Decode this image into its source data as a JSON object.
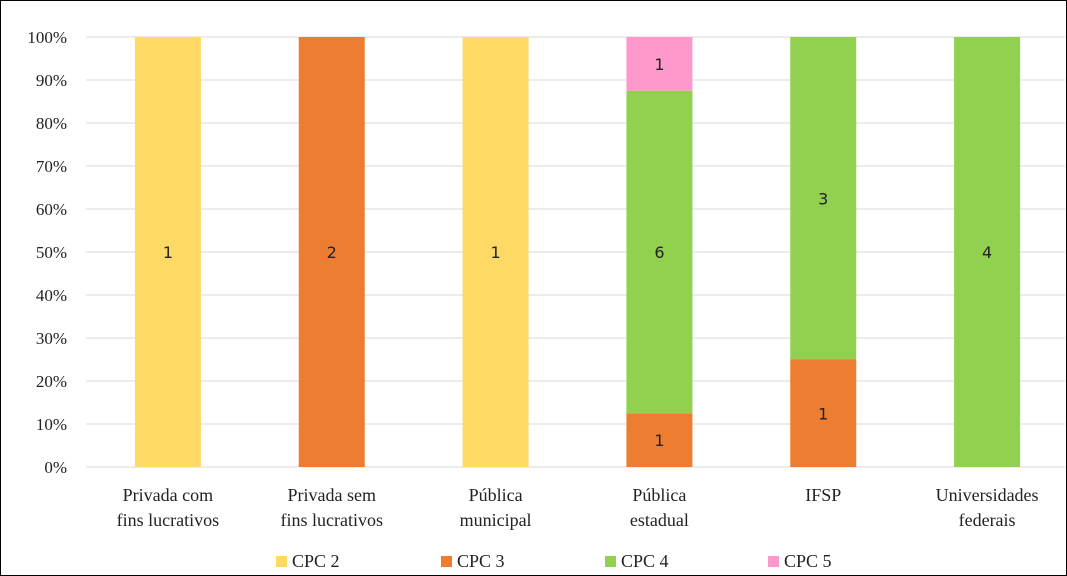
{
  "chart_data": {
    "type": "bar",
    "stacked": "percent",
    "categories": [
      [
        "Privada com",
        "fins lucrativos"
      ],
      [
        "Privada sem",
        "fins lucrativos"
      ],
      [
        "Pública",
        "municipal"
      ],
      [
        "Pública",
        "estadual"
      ],
      [
        "IFSP"
      ],
      [
        "Universidades",
        "federais"
      ]
    ],
    "series": [
      {
        "name": "CPC 2",
        "color": "#FFD966",
        "values": [
          1,
          0,
          1,
          0,
          0,
          0
        ]
      },
      {
        "name": "CPC 3",
        "color": "#ED7D31",
        "values": [
          0,
          2,
          0,
          1,
          1,
          0
        ]
      },
      {
        "name": "CPC 4",
        "color": "#92D050",
        "values": [
          0,
          0,
          0,
          6,
          3,
          4
        ]
      },
      {
        "name": "CPC 5",
        "color": "#FF99CC",
        "values": [
          0,
          0,
          0,
          1,
          0,
          0
        ]
      }
    ],
    "ylim": [
      0,
      100
    ],
    "yticks": [
      "0%",
      "10%",
      "20%",
      "30%",
      "40%",
      "50%",
      "60%",
      "70%",
      "80%",
      "90%",
      "100%"
    ],
    "grid": true,
    "legend_position": "bottom",
    "title": "",
    "xlabel": "",
    "ylabel": ""
  }
}
